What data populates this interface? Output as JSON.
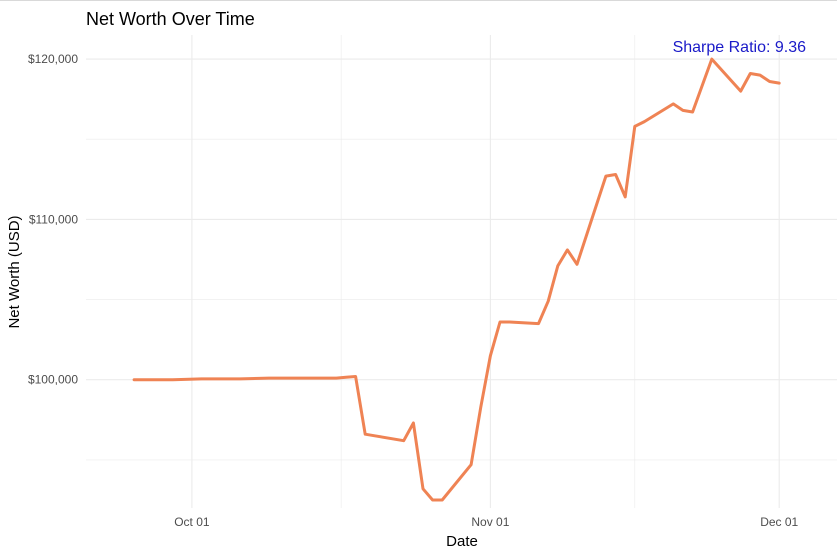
{
  "chart_data": {
    "type": "line",
    "title": "Net Worth Over Time",
    "xlabel": "Date",
    "ylabel": "Net Worth (USD)",
    "annotation": "Sharpe Ratio: 9.36",
    "x_ticks": [
      {
        "date": "2023-10-01",
        "label": "Oct 01"
      },
      {
        "date": "2023-11-01",
        "label": "Nov 01"
      },
      {
        "date": "2023-12-01",
        "label": "Dec 01"
      }
    ],
    "y_ticks": [
      {
        "value": 100000,
        "label": "$100,000"
      },
      {
        "value": 110000,
        "label": "$110,000"
      },
      {
        "value": 120000,
        "label": "$120,000"
      }
    ],
    "xlim": [
      "2023-09-20",
      "2023-12-07"
    ],
    "ylim": [
      92000,
      121500
    ],
    "grid": true,
    "colors": {
      "line": "#ef8354",
      "annotation": "#1a1ac8",
      "grid": "#ebebeb",
      "text": "#4d4d4d"
    },
    "series": [
      {
        "x": [
          "2023-09-25",
          "2023-09-26",
          "2023-09-27",
          "2023-09-28",
          "2023-09-29",
          "2023-10-02",
          "2023-10-03",
          "2023-10-04",
          "2023-10-05",
          "2023-10-06",
          "2023-10-09",
          "2023-10-10",
          "2023-10-11",
          "2023-10-12",
          "2023-10-13",
          "2023-10-16",
          "2023-10-17",
          "2023-10-18",
          "2023-10-19",
          "2023-10-20",
          "2023-10-23",
          "2023-10-24",
          "2023-10-25",
          "2023-10-26",
          "2023-10-27",
          "2023-10-30",
          "2023-10-31",
          "2023-11-01",
          "2023-11-02",
          "2023-11-03",
          "2023-11-06",
          "2023-11-07",
          "2023-11-08",
          "2023-11-09",
          "2023-11-10",
          "2023-11-13",
          "2023-11-14",
          "2023-11-15",
          "2023-11-16",
          "2023-11-17",
          "2023-11-20",
          "2023-11-21",
          "2023-11-22",
          "2023-11-24",
          "2023-11-27",
          "2023-11-28",
          "2023-11-29",
          "2023-11-30",
          "2023-12-01"
        ],
        "values": [
          100000,
          100000,
          100000,
          100000,
          100000,
          100050,
          100050,
          100050,
          100050,
          100050,
          100100,
          100100,
          100100,
          100100,
          100100,
          100100,
          100150,
          100200,
          96600,
          96500,
          96200,
          97300,
          93200,
          92500,
          92500,
          94700,
          98300,
          101500,
          103600,
          103600,
          103500,
          104900,
          107100,
          108100,
          107200,
          112700,
          112800,
          111400,
          115800,
          116100,
          117200,
          116800,
          116700,
          120000,
          118000,
          119100,
          119000,
          118600,
          118500
        ]
      }
    ]
  }
}
